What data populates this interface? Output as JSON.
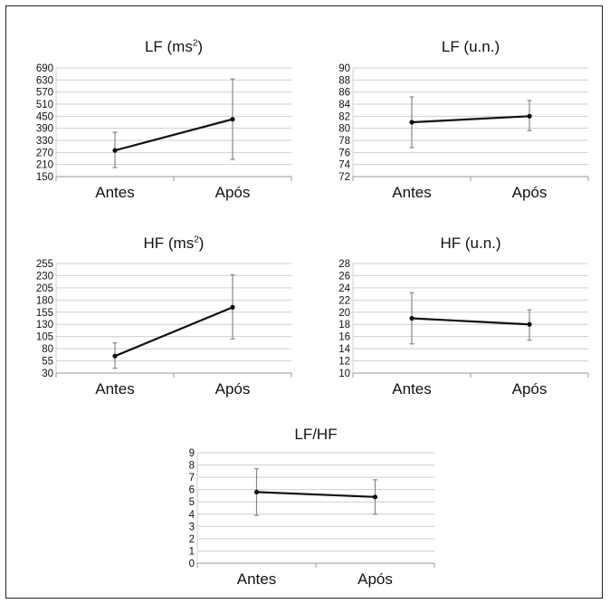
{
  "chart_data": [
    {
      "type": "line",
      "title": "LF (ms",
      "title_superscript": "2",
      "title_suffix": ")",
      "categories": [
        "Antes",
        "Após"
      ],
      "series": [
        {
          "values": [
            280,
            435
          ],
          "error_low": [
            195,
            235
          ],
          "error_high": [
            370,
            635
          ]
        }
      ],
      "ylim": [
        150,
        690
      ],
      "yticks": [
        150,
        210,
        270,
        330,
        390,
        450,
        510,
        570,
        630,
        690
      ],
      "grid": true,
      "line_color": "#111111",
      "error_color": "#888888",
      "grid_color": "#cfcfcf"
    },
    {
      "type": "line",
      "title": "LF (u.n.)",
      "categories": [
        "Antes",
        "Após"
      ],
      "series": [
        {
          "values": [
            81,
            82
          ],
          "error_low": [
            76.8,
            79.6
          ],
          "error_high": [
            85.2,
            84.6
          ]
        }
      ],
      "ylim": [
        72,
        90
      ],
      "yticks": [
        72,
        74,
        76,
        78,
        80,
        82,
        84,
        86,
        88,
        90
      ],
      "grid": true,
      "line_color": "#111111",
      "error_color": "#888888",
      "grid_color": "#cfcfcf"
    },
    {
      "type": "line",
      "title": "HF (ms",
      "title_superscript": "2",
      "title_suffix": ")",
      "categories": [
        "Antes",
        "Após"
      ],
      "series": [
        {
          "values": [
            65,
            165
          ],
          "error_low": [
            40,
            100
          ],
          "error_high": [
            92,
            232
          ]
        }
      ],
      "ylim": [
        30,
        255
      ],
      "yticks": [
        30,
        55,
        80,
        105,
        130,
        155,
        180,
        205,
        230,
        255
      ],
      "grid": true,
      "line_color": "#111111",
      "error_color": "#888888",
      "grid_color": "#cfcfcf"
    },
    {
      "type": "line",
      "title": "HF (u.n.)",
      "categories": [
        "Antes",
        "Após"
      ],
      "series": [
        {
          "values": [
            19,
            18
          ],
          "error_low": [
            14.8,
            15.4
          ],
          "error_high": [
            23.2,
            20.4
          ]
        }
      ],
      "ylim": [
        10,
        28
      ],
      "yticks": [
        10,
        12,
        14,
        16,
        18,
        20,
        22,
        24,
        26,
        28
      ],
      "grid": true,
      "line_color": "#111111",
      "error_color": "#888888",
      "grid_color": "#cfcfcf"
    },
    {
      "type": "line",
      "title": "LF/HF",
      "categories": [
        "Antes",
        "Após"
      ],
      "series": [
        {
          "values": [
            5.8,
            5.4
          ],
          "error_low": [
            3.9,
            4.0
          ],
          "error_high": [
            7.7,
            6.8
          ]
        }
      ],
      "ylim": [
        0,
        9
      ],
      "yticks": [
        0,
        1,
        2,
        3,
        4,
        5,
        6,
        7,
        8,
        9
      ],
      "grid": true,
      "line_color": "#111111",
      "error_color": "#888888",
      "grid_color": "#cfcfcf"
    }
  ]
}
